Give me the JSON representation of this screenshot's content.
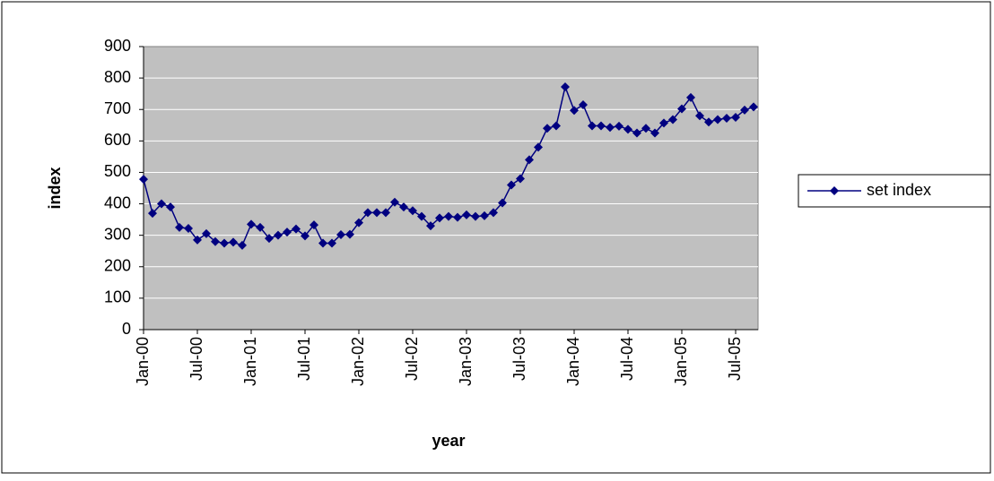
{
  "chart_data": {
    "type": "line",
    "x_label": "year",
    "y_label": "index",
    "categories": [
      "Jan-00",
      null,
      null,
      null,
      null,
      null,
      "Jul-00",
      null,
      null,
      null,
      null,
      null,
      "Jan-01",
      null,
      null,
      null,
      null,
      null,
      "Jul-01",
      null,
      null,
      null,
      null,
      null,
      "Jan-02",
      null,
      null,
      null,
      null,
      null,
      "Jul-02",
      null,
      null,
      null,
      null,
      null,
      "Jan-03",
      null,
      null,
      null,
      null,
      null,
      "Jul-03",
      null,
      null,
      null,
      null,
      null,
      "Jan-04",
      null,
      null,
      null,
      null,
      null,
      "Jul-04",
      null,
      null,
      null,
      null,
      null,
      "Jan-05",
      null,
      null,
      null,
      null,
      null,
      "Jul-05",
      null,
      null
    ],
    "series": [
      {
        "name": "set index",
        "color": "#000080",
        "values": [
          478,
          370,
          400,
          390,
          325,
          322,
          285,
          305,
          280,
          275,
          278,
          268,
          335,
          325,
          290,
          300,
          310,
          320,
          298,
          333,
          275,
          275,
          302,
          303,
          340,
          372,
          372,
          372,
          405,
          390,
          378,
          360,
          330,
          355,
          360,
          357,
          365,
          360,
          362,
          372,
          403,
          460,
          480,
          540,
          580,
          640,
          648,
          772,
          697,
          715,
          648,
          648,
          643,
          647,
          637,
          625,
          640,
          625,
          657,
          668,
          702,
          738,
          680,
          660,
          668,
          672,
          675,
          698,
          708
        ]
      }
    ],
    "ylim": [
      0,
      900
    ],
    "yticks": [
      0,
      100,
      200,
      300,
      400,
      500,
      600,
      700,
      800,
      900
    ],
    "grid": true,
    "legend": "right",
    "plot_background": "#c0c0c0"
  }
}
